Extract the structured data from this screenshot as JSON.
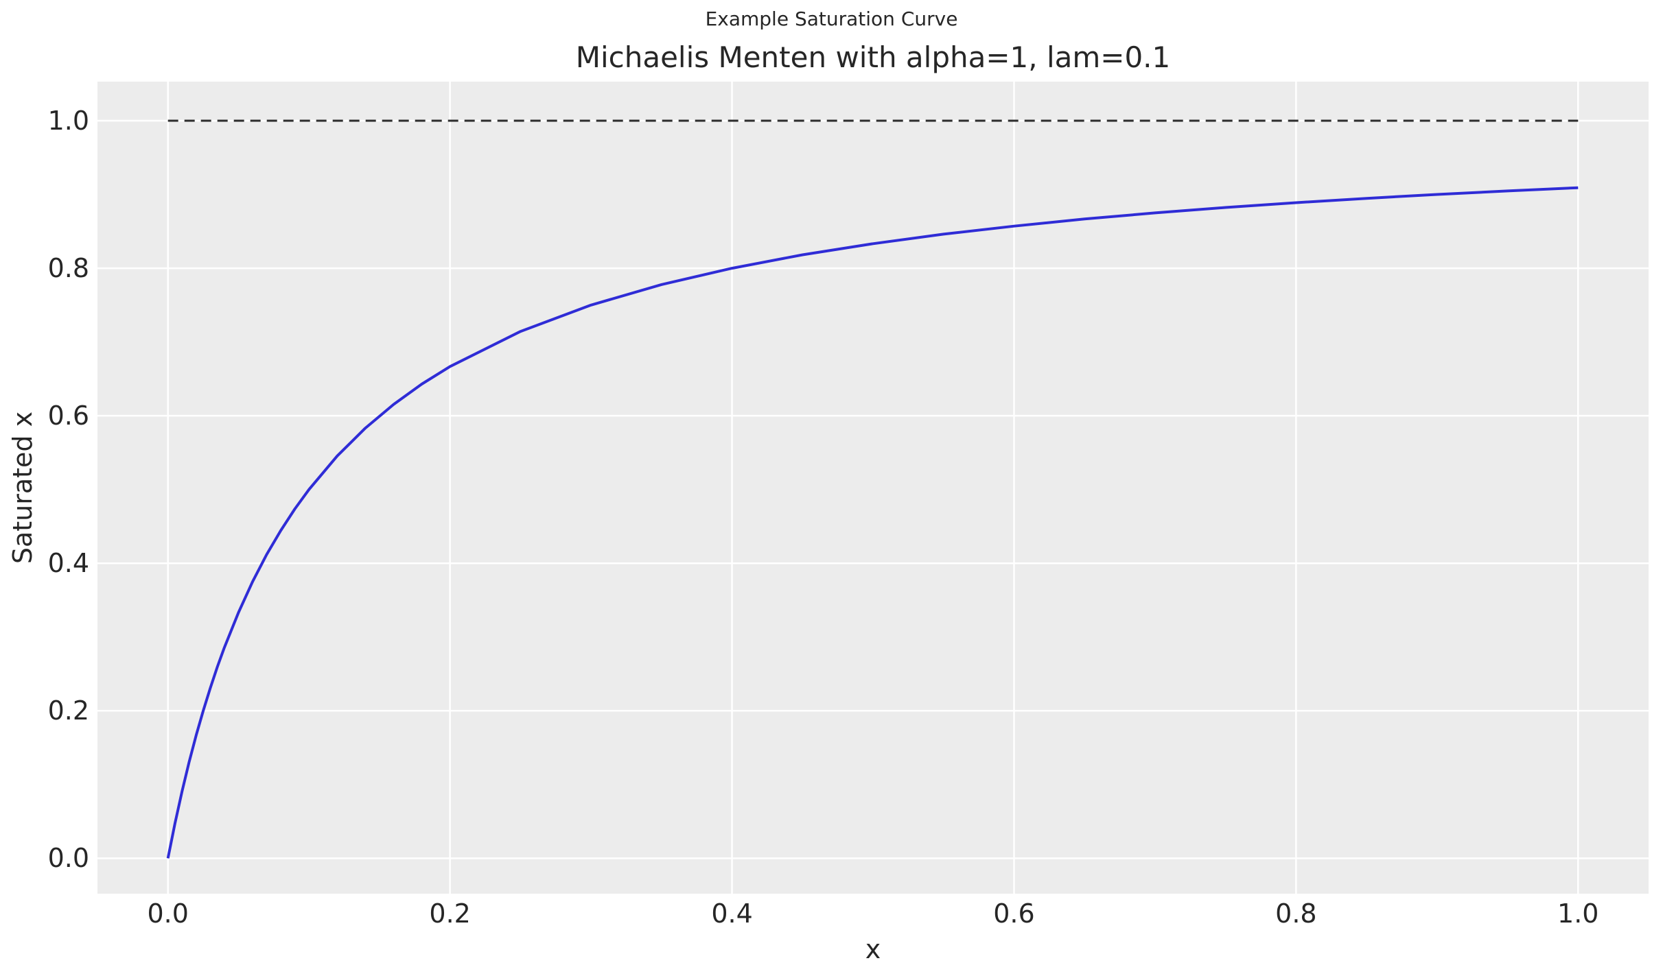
{
  "figure": {
    "suptitle": "Example Saturation Curve",
    "title": "Michaelis Menten with alpha=1, lam=0.1",
    "xlabel": "x",
    "ylabel": "Saturated x"
  },
  "chart_data": {
    "type": "line",
    "suptitle": "Example Saturation Curve",
    "title": "Michaelis Menten with alpha=1, lam=0.1",
    "xlabel": "x",
    "ylabel": "Saturated x",
    "xlim": [
      -0.05,
      1.05
    ],
    "ylim": [
      -0.048,
      1.053
    ],
    "xticks": [
      0.0,
      0.2,
      0.4,
      0.6,
      0.8,
      1.0
    ],
    "yticks": [
      0.0,
      0.2,
      0.4,
      0.6,
      0.8,
      1.0
    ],
    "xtick_labels": [
      "0.0",
      "0.2",
      "0.4",
      "0.6",
      "0.8",
      "1.0"
    ],
    "ytick_labels": [
      "0.0",
      "0.2",
      "0.4",
      "0.6",
      "0.8",
      "1.0"
    ],
    "grid": true,
    "legend": "none",
    "series": [
      {
        "name": "michaelis-menten-curve",
        "style": "solid",
        "color": "#2f2cd6",
        "linewidth": 4,
        "x": [
          0,
          0.005,
          0.01,
          0.015,
          0.02,
          0.025,
          0.03,
          0.035,
          0.04,
          0.05,
          0.06,
          0.07,
          0.08,
          0.09,
          0.1,
          0.12,
          0.14,
          0.16,
          0.18,
          0.2,
          0.25,
          0.3,
          0.35,
          0.4,
          0.45,
          0.5,
          0.55,
          0.6,
          0.65,
          0.7,
          0.75,
          0.8,
          0.85,
          0.9,
          0.95,
          1.0
        ],
        "y": [
          0,
          0.0476,
          0.0909,
          0.1304,
          0.1667,
          0.2,
          0.2308,
          0.2593,
          0.2857,
          0.3333,
          0.375,
          0.4118,
          0.4444,
          0.4737,
          0.5,
          0.5455,
          0.5833,
          0.6154,
          0.6429,
          0.6667,
          0.7143,
          0.75,
          0.7778,
          0.8,
          0.8182,
          0.8333,
          0.8462,
          0.8571,
          0.8667,
          0.875,
          0.8824,
          0.8889,
          0.8947,
          0.9,
          0.9048,
          0.9091
        ]
      },
      {
        "name": "asymptote",
        "style": "dashed",
        "color": "#2d2d2d",
        "linewidth": 3,
        "x": [
          0,
          1.0
        ],
        "y": [
          1.0,
          1.0
        ]
      }
    ]
  },
  "colors": {
    "figure_bg": "#ffffff",
    "plot_bg": "#ececec",
    "grid": "#ffffff",
    "curve": "#2f2cd6",
    "asymptote": "#2d2d2d",
    "text": "#262626"
  }
}
